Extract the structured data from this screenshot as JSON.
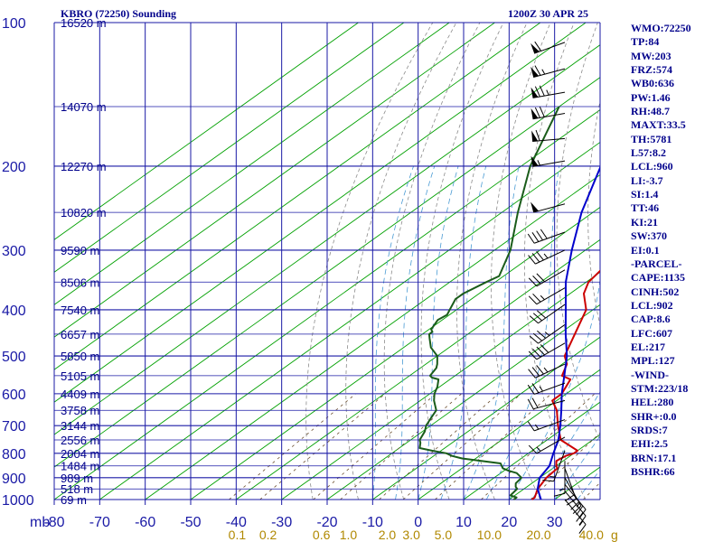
{
  "header": {
    "station": "KBRO (72250) Sounding",
    "time": "1200Z 30 APR 25"
  },
  "indices": [
    "WMO:72250",
    "TP:84",
    "MW:203",
    "FRZ:574",
    "WB0:636",
    "PW:1.46",
    "RH:48.7",
    "MAXT:33.5",
    "TH:5781",
    "L57:8.2",
    "LCL:960",
    "LI:-3.7",
    "SI:1.4",
    "TT:46",
    "KI:21",
    "SW:370",
    "EI:0.1",
    "-PARCEL-",
    "CAPE:1135",
    "CINH:502",
    "LCL:902",
    "CAP:8.6",
    "LFC:607",
    "EL:217",
    "MPL:127",
    "-WIND-",
    "STM:223/18",
    "HEL:280",
    "SHR+:0.0",
    "SRDS:7",
    "EHI:2.5",
    "BRN:17.1",
    "BSHR:66"
  ],
  "chart_data": {
    "type": "line",
    "title": "KBRO (72250) Sounding 1200Z 30 APR 25",
    "xlabel": "",
    "ylabel": "mb",
    "y_scale": "log",
    "ylim": [
      1000,
      100
    ],
    "xlim": [
      -80,
      40
    ],
    "pressure_ticks": [
      100,
      200,
      300,
      400,
      500,
      600,
      700,
      800,
      900,
      1000
    ],
    "temperature_ticks": [
      -80,
      -70,
      -60,
      -50,
      -40,
      -30,
      -20,
      -10,
      0,
      10,
      20,
      30
    ],
    "axis_unit_label": "mb",
    "height_labels": [
      {
        "p": 100,
        "label": "16520 m"
      },
      {
        "p": 150,
        "label": "14070 m"
      },
      {
        "p": 200,
        "label": "12270 m"
      },
      {
        "p": 250,
        "label": "10820 m"
      },
      {
        "p": 300,
        "label": "9590 m"
      },
      {
        "p": 350,
        "label": "8506 m"
      },
      {
        "p": 400,
        "label": "7540 m"
      },
      {
        "p": 450,
        "label": "6657 m"
      },
      {
        "p": 500,
        "label": "5850 m"
      },
      {
        "p": 550,
        "label": "5105 m"
      },
      {
        "p": 600,
        "label": "4409 m"
      },
      {
        "p": 650,
        "label": "3758 m"
      },
      {
        "p": 700,
        "label": "3144 m"
      },
      {
        "p": 750,
        "label": "2556 m"
      },
      {
        "p": 800,
        "label": "2004 m"
      },
      {
        "p": 850,
        "label": "1484 m"
      },
      {
        "p": 900,
        "label": "989 m"
      },
      {
        "p": 950,
        "label": "518 m"
      },
      {
        "p": 1000,
        "label": "69 m"
      }
    ],
    "mixing_ratio_labels": [
      {
        "w": 0.1,
        "label": "0.1"
      },
      {
        "w": 0.2,
        "label": "0.2"
      },
      {
        "w": 0.6,
        "label": "0.6"
      },
      {
        "w": 1.0,
        "label": "1.0"
      },
      {
        "w": 2.0,
        "label": "2.0"
      },
      {
        "w": 3.0,
        "label": "3.0"
      },
      {
        "w": 5.0,
        "label": "5.0"
      },
      {
        "w": 10.0,
        "label": "10.0"
      },
      {
        "w": 20.0,
        "label": "20.0"
      },
      {
        "w": 40.0,
        "label": "40.0"
      }
    ],
    "mixing_ratio_unit": "g",
    "series": [
      {
        "color": "#cc0000",
        "p": [
          1000,
          990,
          950,
          900,
          860,
          850,
          830,
          810,
          800,
          790,
          750,
          700,
          650,
          620,
          600,
          560,
          550,
          520,
          500,
          450,
          400,
          370,
          350,
          330,
          300,
          280,
          260,
          250,
          230,
          220,
          200,
          180,
          150,
          120,
          100
        ],
        "t": [
          25.0,
          25.0,
          23.0,
          21.5,
          21.0,
          20.0,
          18.5,
          19.0,
          20.0,
          20.0,
          13.0,
          8.0,
          3.0,
          -1.0,
          -1.0,
          -3.5,
          -6.5,
          -9.0,
          -12.0,
          -16.5,
          -21.5,
          -27.0,
          -29.5,
          -30.5,
          -35.0,
          -39.0,
          -43.0,
          -45.5,
          -50.0,
          -53.0,
          -57.0,
          -62.0,
          -67.5,
          -73.0,
          -77.0
        ]
      },
      {
        "color": "#1a5c1a",
        "p": [
          1000,
          990,
          980,
          950,
          940,
          925,
          900,
          880,
          870,
          860,
          850,
          840,
          820,
          810,
          800,
          790,
          780,
          760,
          750,
          720,
          700,
          680,
          650,
          620,
          600,
          580,
          560,
          555,
          550,
          530,
          520,
          500,
          480,
          460,
          450,
          445,
          440,
          420,
          410,
          400,
          380,
          370,
          350,
          340,
          300,
          250,
          200,
          150
        ],
        "t": [
          21.0,
          21.0,
          19.0,
          18.5,
          17.5,
          16.5,
          16.0,
          13.5,
          11.0,
          9.0,
          8.0,
          7.0,
          -3.0,
          -6.0,
          -8.0,
          -12.0,
          -15.5,
          -17.0,
          -18.0,
          -19.5,
          -21.0,
          -22.0,
          -23.5,
          -27.0,
          -29.0,
          -30.5,
          -32.5,
          -34.5,
          -35.5,
          -36.5,
          -37.5,
          -40.0,
          -44.0,
          -47.0,
          -48.5,
          -48.5,
          -49.5,
          -51.0,
          -50.5,
          -51.5,
          -53.5,
          -53.5,
          -52.0,
          -51.0,
          -56.5,
          -66.5,
          -78.0,
          -90.0
        ]
      },
      {
        "color": "#0000cc",
        "p": [
          1000,
          950,
          900,
          850,
          800,
          750,
          700,
          650,
          600,
          550,
          500,
          450,
          400,
          350,
          300,
          250,
          200,
          150,
          120,
          100
        ],
        "t": [
          27.0,
          23.0,
          20.0,
          18.5,
          15.5,
          12.5,
          8.5,
          4.0,
          -1.0,
          -6.0,
          -11.5,
          -18.5,
          -26.0,
          -34.5,
          -43.0,
          -52.5,
          -62.5,
          -73.5,
          -80.0,
          -85.0
        ]
      }
    ],
    "winds": [
      {
        "p": 110,
        "dir": 250,
        "spd": 60
      },
      {
        "p": 125,
        "dir": 255,
        "spd": 65
      },
      {
        "p": 140,
        "dir": 260,
        "spd": 75
      },
      {
        "p": 155,
        "dir": 260,
        "spd": 70
      },
      {
        "p": 175,
        "dir": 265,
        "spd": 60
      },
      {
        "p": 195,
        "dir": 260,
        "spd": 55
      },
      {
        "p": 240,
        "dir": 255,
        "spd": 50
      },
      {
        "p": 275,
        "dir": 250,
        "spd": 40
      },
      {
        "p": 300,
        "dir": 245,
        "spd": 35
      },
      {
        "p": 330,
        "dir": 240,
        "spd": 30
      },
      {
        "p": 360,
        "dir": 240,
        "spd": 25
      },
      {
        "p": 390,
        "dir": 235,
        "spd": 30
      },
      {
        "p": 430,
        "dir": 235,
        "spd": 35
      },
      {
        "p": 470,
        "dir": 240,
        "spd": 40
      },
      {
        "p": 520,
        "dir": 245,
        "spd": 35
      },
      {
        "p": 570,
        "dir": 250,
        "spd": 25
      },
      {
        "p": 620,
        "dir": 255,
        "spd": 20
      },
      {
        "p": 680,
        "dir": 250,
        "spd": 15
      },
      {
        "p": 740,
        "dir": 240,
        "spd": 15
      },
      {
        "p": 790,
        "dir": 200,
        "spd": 15
      },
      {
        "p": 830,
        "dir": 180,
        "spd": 15
      },
      {
        "p": 860,
        "dir": 160,
        "spd": 20
      },
      {
        "p": 900,
        "dir": 150,
        "spd": 25
      },
      {
        "p": 930,
        "dir": 140,
        "spd": 25
      },
      {
        "p": 960,
        "dir": 140,
        "spd": 20
      },
      {
        "p": 1000,
        "dir": 140,
        "spd": 15
      }
    ],
    "grid": true,
    "background_lines": [
      "isotherms",
      "isobars",
      "dry-adiabats",
      "moist-adiabats",
      "mixing-ratio"
    ],
    "colors": {
      "isobar": "#1a1aa6",
      "isotherm": "#00a000",
      "dry_adiabat": "#8c8c8c",
      "moist_adiabat": "#4a9bd4",
      "mixing_ratio": "#6b4e2e",
      "labels": "#00008b",
      "axis_labels": "#1a1aa6",
      "temperature": "#cc0000",
      "dewpoint": "#1a5c1a",
      "parcel": "#0000cc",
      "wind_barbs": "#000000"
    }
  }
}
